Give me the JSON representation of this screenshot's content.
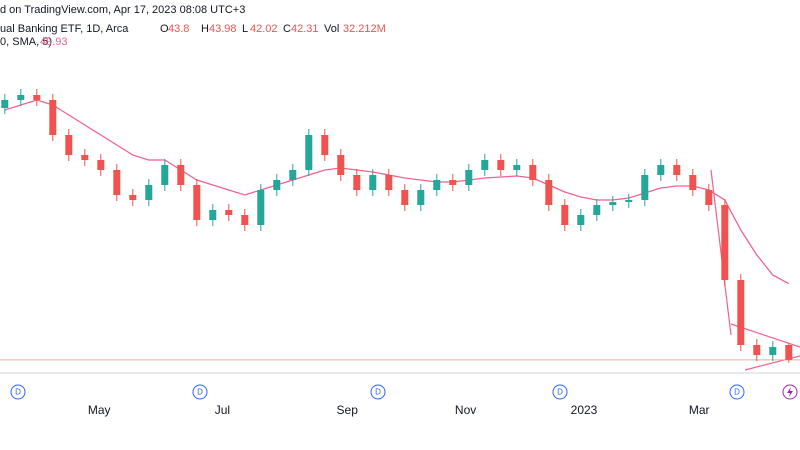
{
  "chart_data": {
    "type": "candlestick",
    "header": {
      "source": "d on TradingView.com, Apr 17, 2023 08:08 UTC+3",
      "symbol": "ual Banking ETF, 1D, Arca",
      "ohlc_labels": [
        "O",
        "H",
        "L",
        "C"
      ],
      "volume_label": "Vol",
      "volume": "32.212M",
      "indicator": "0, SMA, 5)"
    },
    "up_color": "#26a69a",
    "down_color": "#ef5350",
    "open": [
      67.5,
      68.3,
      68.8,
      68.3,
      64.8,
      62.8,
      62.3,
      61.3,
      58.8,
      58.3,
      59.8,
      61.8,
      59.8,
      56.3,
      57.3,
      56.8,
      55.8,
      59.3,
      60.3,
      61.3,
      64.8,
      62.8,
      60.8,
      59.3,
      60.8,
      59.3,
      57.8,
      59.3,
      60.3,
      59.8,
      61.3,
      62.3,
      61.3,
      61.8,
      60.3,
      57.8,
      55.8,
      56.8,
      57.8,
      58.1,
      58.3,
      60.8,
      61.8,
      60.8,
      59.3,
      57.8,
      50.3,
      43.8,
      42.8,
      43.8
    ],
    "high": [
      68.9,
      69.4,
      69.4,
      68.9,
      65.4,
      63.4,
      62.9,
      61.9,
      59.4,
      60.4,
      62.4,
      62.4,
      60.4,
      57.9,
      57.9,
      57.4,
      59.9,
      60.9,
      61.9,
      65.4,
      65.4,
      63.4,
      61.4,
      61.4,
      61.4,
      59.9,
      59.9,
      60.9,
      60.9,
      61.9,
      62.9,
      62.9,
      62.4,
      62.4,
      60.9,
      58.4,
      57.4,
      58.4,
      58.7,
      58.9,
      61.4,
      62.4,
      62.4,
      61.4,
      59.9,
      58.4,
      50.9,
      44.4,
      44.2,
      43.98
    ],
    "low": [
      66.9,
      67.7,
      67.7,
      64.2,
      62.2,
      61.7,
      60.7,
      58.2,
      57.7,
      57.7,
      59.2,
      59.2,
      55.7,
      55.7,
      56.2,
      55.2,
      55.2,
      58.7,
      59.7,
      60.7,
      62.2,
      60.2,
      58.7,
      58.7,
      58.7,
      57.2,
      57.2,
      58.7,
      59.2,
      59.2,
      60.7,
      60.7,
      60.7,
      59.7,
      57.2,
      55.2,
      55.2,
      56.2,
      57.2,
      57.5,
      57.7,
      60.2,
      60.2,
      58.7,
      57.2,
      49.7,
      43.2,
      42.2,
      42.2,
      42.02
    ],
    "close": [
      68.3,
      68.8,
      68.3,
      64.8,
      62.8,
      62.3,
      61.3,
      58.8,
      58.3,
      59.8,
      61.8,
      59.8,
      56.3,
      57.3,
      56.8,
      55.8,
      59.3,
      60.3,
      61.3,
      64.8,
      62.8,
      60.8,
      59.3,
      60.8,
      59.3,
      57.8,
      59.3,
      60.3,
      59.8,
      61.3,
      62.3,
      61.3,
      61.8,
      60.3,
      57.8,
      55.8,
      56.8,
      57.8,
      58.1,
      58.3,
      60.8,
      61.8,
      60.8,
      59.3,
      57.8,
      50.3,
      43.8,
      42.8,
      43.6,
      42.31
    ],
    "sma": {
      "color": "#f06292",
      "values": [
        67.3,
        67.8,
        68.3,
        67.8,
        66.8,
        65.8,
        64.8,
        63.8,
        62.8,
        62.3,
        62.3,
        61.3,
        60.3,
        59.8,
        59.3,
        58.8,
        59.3,
        59.8,
        60.3,
        60.8,
        61.3,
        61.5,
        61.3,
        61.1,
        60.8,
        60.5,
        60.3,
        60.1,
        60.1,
        60.3,
        60.5,
        60.6,
        60.7,
        60.5,
        59.8,
        59.1,
        58.6,
        58.3,
        58.3,
        58.5,
        59.0,
        59.5,
        59.7,
        59.7,
        59.3,
        58.3,
        55.3,
        52.8,
        50.8,
        49.93
      ]
    },
    "xlim": [
      -0.3,
      49.7
    ],
    "ylim": [
      38.3,
      78.3
    ],
    "xticks": [
      {
        "value": 5.9,
        "label": "May"
      },
      {
        "value": 13.6,
        "label": "Jul"
      },
      {
        "value": 21.4,
        "label": "Sep"
      },
      {
        "value": 28.8,
        "label": "Nov"
      },
      {
        "value": 36.2,
        "label": "2023"
      },
      {
        "value": 43.4,
        "label": "Mar"
      }
    ],
    "event_labels": [
      "D",
      "D",
      "D",
      "D",
      "D"
    ]
  }
}
